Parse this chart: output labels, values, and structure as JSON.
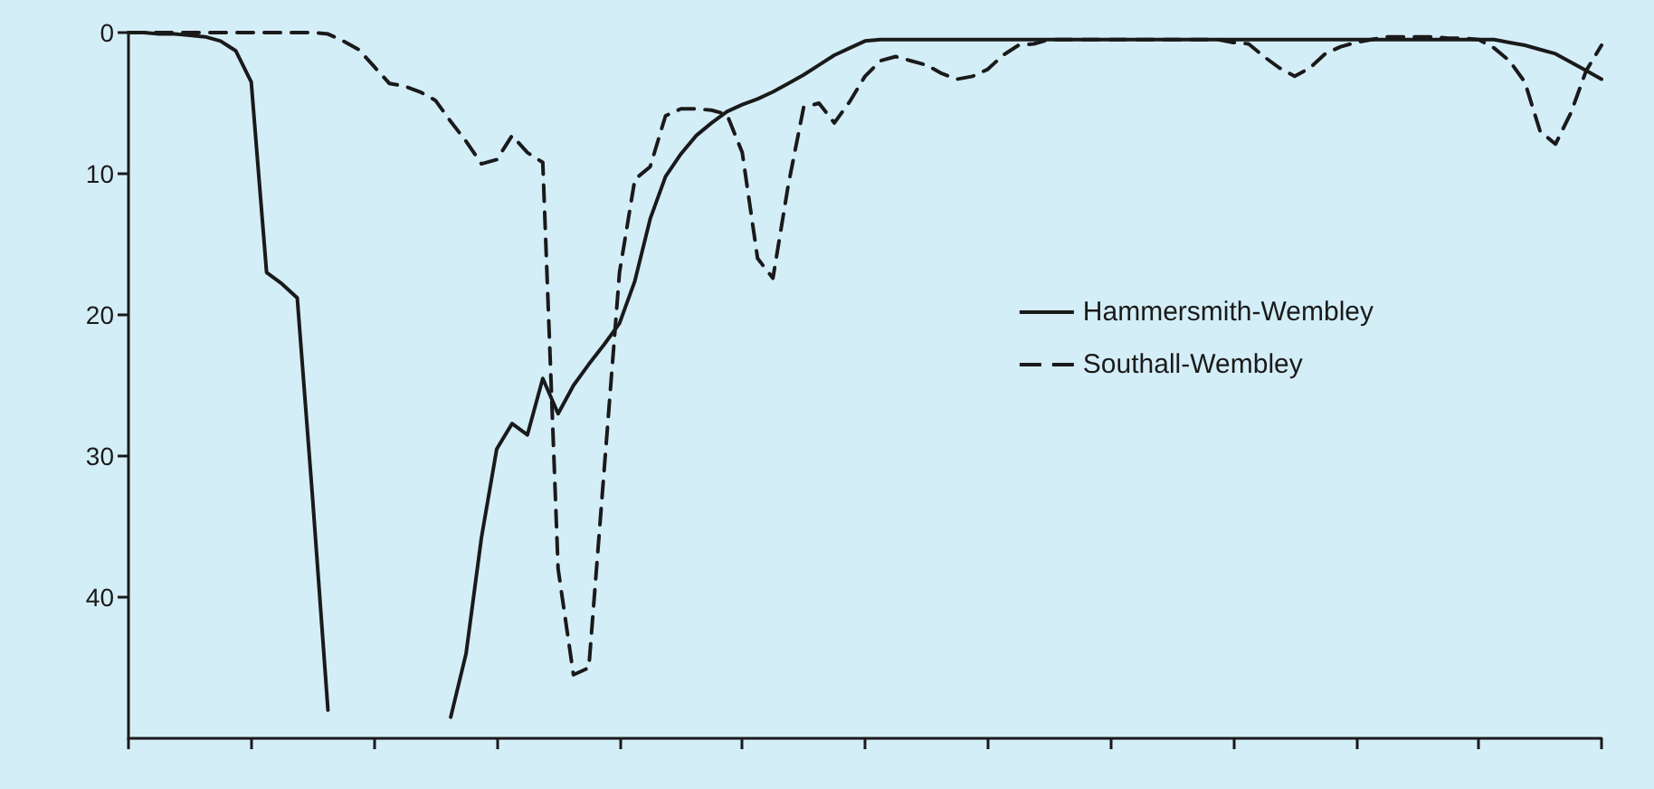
{
  "chart_data": {
    "type": "line",
    "categories": [
      null,
      null,
      null,
      null,
      null,
      null,
      null,
      null,
      null,
      null,
      null,
      null,
      null,
      null,
      null,
      null,
      null,
      null,
      null,
      null,
      null,
      null,
      null,
      null,
      null,
      null,
      null,
      null,
      null,
      null,
      null,
      null,
      null,
      null,
      null,
      null,
      null,
      null,
      null,
      null,
      null,
      null,
      null,
      null,
      null,
      null,
      null,
      null,
      null,
      null,
      null,
      null,
      null,
      null,
      null,
      null,
      null,
      null,
      null,
      null,
      null,
      null,
      null,
      null,
      null,
      null,
      null,
      null,
      null,
      null,
      null,
      null,
      null,
      null,
      null,
      null,
      null,
      null,
      null,
      null,
      null,
      null,
      null,
      null,
      null,
      null,
      null,
      null,
      null,
      null,
      null,
      null,
      null,
      null,
      null,
      null,
      null
    ],
    "ylim": [
      50,
      0
    ],
    "yticks": [
      0,
      10,
      20,
      30,
      40
    ],
    "tick_labels": "y",
    "grid": false,
    "legend": "right",
    "series": [
      {
        "name": "Hammersmith-Wembley",
        "color": "#1a1a1a",
        "line_style": "solid",
        "values": [
          0,
          0,
          0.1,
          0.1,
          0.2,
          0.3,
          0.6,
          1.3,
          3.5,
          17,
          17.8,
          18.8,
          33,
          48,
          null,
          null,
          null,
          null,
          null,
          null,
          null,
          48.5,
          44,
          35.8,
          29.5,
          27.7,
          28.5,
          24.5,
          27,
          25,
          23.5,
          22.1,
          20.6,
          17.6,
          13.2,
          10.2,
          8.6,
          7.3,
          6.4,
          5.6,
          5.1,
          4.7,
          4.2,
          3.6,
          3.0,
          2.3,
          1.6,
          1.1,
          0.6,
          0.5,
          0.5,
          0.5,
          0.5,
          0.5,
          0.5,
          0.5,
          0.5,
          0.5,
          0.5,
          0.5,
          0.5,
          0.5,
          0.5,
          0.5,
          0.5,
          0.5,
          0.5,
          0.5,
          0.5,
          0.5,
          0.5,
          0.5,
          0.5,
          0.5,
          0.5,
          0.5,
          0.5,
          0.5,
          0.5,
          0.5,
          0.5,
          0.5,
          0.5,
          0.5,
          0.5,
          0.5,
          0.5,
          0.5,
          0.5,
          0.5,
          0.7,
          0.9,
          1.2,
          1.5,
          2.1,
          2.7,
          3.3
        ]
      },
      {
        "name": "Southall-Wembley",
        "color": "#1a1a1a",
        "line_style": "dashed",
        "values": [
          0,
          0,
          0,
          0,
          0,
          0,
          0,
          0,
          0,
          0,
          0,
          0,
          0,
          0.1,
          0.6,
          1.2,
          2.4,
          3.6,
          3.8,
          4.2,
          4.8,
          6.3,
          7.7,
          9.3,
          9,
          7.3,
          8.5,
          9.2,
          38,
          45.5,
          45,
          31,
          17,
          10.4,
          9.5,
          5.9,
          5.4,
          5.4,
          5.5,
          5.8,
          8.5,
          16,
          17.4,
          10.8,
          5.3,
          5,
          6.4,
          4.9,
          3.1,
          2,
          1.7,
          2,
          2.3,
          2.9,
          3.3,
          3.1,
          2.6,
          1.6,
          0.9,
          0.8,
          0.5,
          0.5,
          0.5,
          0.5,
          0.5,
          0.5,
          0.5,
          0.5,
          0.5,
          0.5,
          0.5,
          0.5,
          0.7,
          0.8,
          1.7,
          2.5,
          3.1,
          2.5,
          1.5,
          1,
          0.7,
          0.5,
          0.3,
          0.3,
          0.3,
          0.3,
          0.4,
          0.4,
          0.5,
          1.1,
          2,
          3.5,
          7,
          7.9,
          5.7,
          2.7,
          0.9
        ]
      }
    ]
  }
}
